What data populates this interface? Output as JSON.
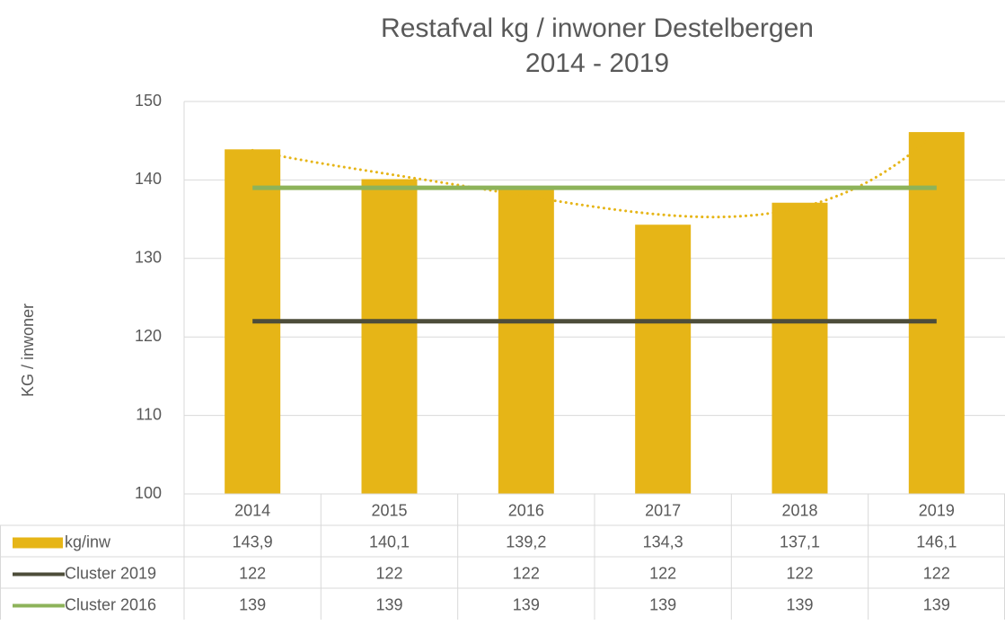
{
  "chart_data": {
    "type": "bar",
    "title": "Restafval kg / inwoner Destelbergen",
    "subtitle": "2014 - 2019",
    "y_label": "KG / inwoner",
    "categories": [
      "2014",
      "2015",
      "2016",
      "2017",
      "2018",
      "2019"
    ],
    "series": [
      {
        "name": "kg/inw",
        "type": "bar",
        "color": "#e6b517",
        "values": [
          143.9,
          140.1,
          139.2,
          134.3,
          137.1,
          146.1
        ],
        "value_labels": [
          "143,9",
          "140,1",
          "139,2",
          "134,3",
          "137,1",
          "146,1"
        ]
      },
      {
        "name": "Cluster 2019",
        "type": "line",
        "color": "#4d4d3a",
        "values": [
          122,
          122,
          122,
          122,
          122,
          122
        ]
      },
      {
        "name": "Cluster 2016",
        "type": "line",
        "color": "#8db35a",
        "values": [
          139,
          139,
          139,
          139,
          139,
          139
        ]
      }
    ],
    "trendline": {
      "type": "polynomial",
      "order": 4,
      "color": "#e6b517"
    },
    "ylim": [
      100,
      150
    ],
    "yticks": [
      100,
      110,
      120,
      130,
      140,
      150
    ],
    "grid": true,
    "data_table": true
  }
}
